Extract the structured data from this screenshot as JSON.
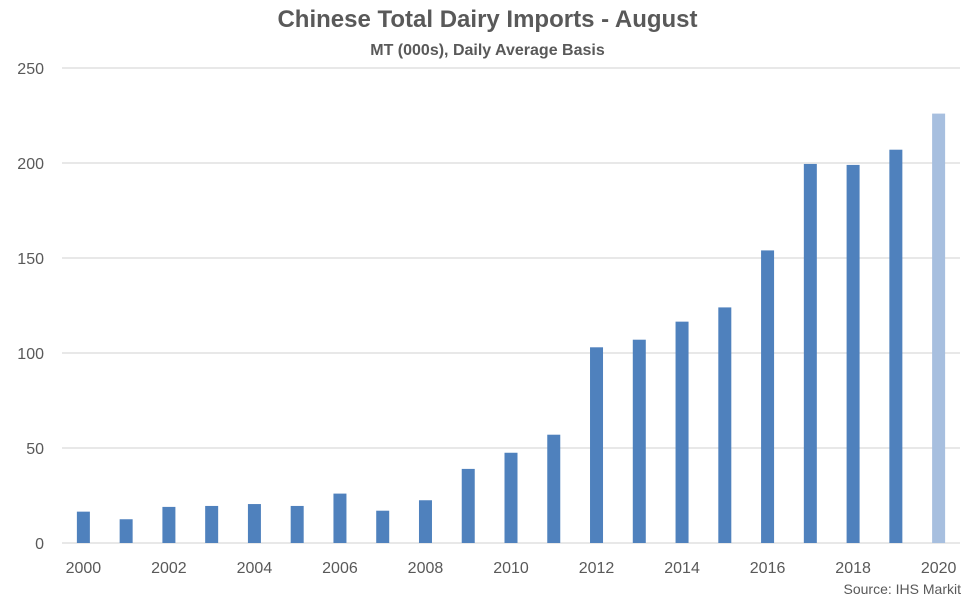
{
  "chart_data": {
    "type": "bar",
    "title": "Chinese Total Dairy Imports - August",
    "subtitle": "MT (000s), Daily Average Basis",
    "categories": [
      "2000",
      "2001",
      "2002",
      "2003",
      "2004",
      "2005",
      "2006",
      "2007",
      "2008",
      "2009",
      "2010",
      "2011",
      "2012",
      "2013",
      "2014",
      "2015",
      "2016",
      "2017",
      "2018",
      "2019",
      "2020"
    ],
    "x_tick_labels": [
      "2000",
      "2002",
      "2004",
      "2006",
      "2008",
      "2010",
      "2012",
      "2014",
      "2016",
      "2018",
      "2020"
    ],
    "values": [
      16.5,
      12.5,
      19,
      19.5,
      20.5,
      19.5,
      26,
      17,
      22.5,
      39,
      47.5,
      57,
      103,
      107,
      116.5,
      124,
      154,
      199.5,
      199,
      207,
      226
    ],
    "highlight_category": "2020",
    "ylim": [
      0,
      250
    ],
    "y_ticks": [
      0,
      50,
      100,
      150,
      200,
      250
    ],
    "grid": true,
    "xlabel": "",
    "ylabel": "",
    "colors": {
      "bar": "#4f81bd",
      "highlight": "#a7bfdf",
      "grid": "#d9d9d9",
      "text": "#595959"
    }
  },
  "source": "Source: IHS Markit"
}
